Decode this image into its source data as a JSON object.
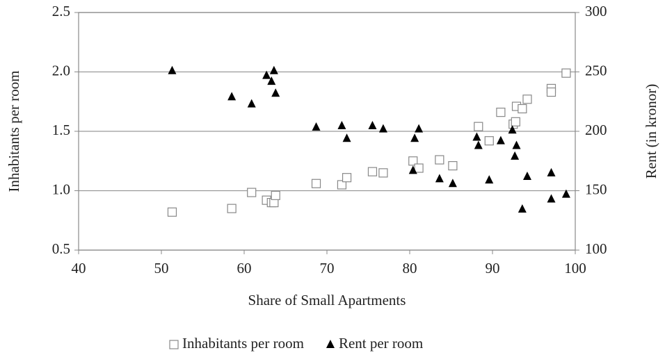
{
  "chart_data": {
    "type": "scatter",
    "x_label": "Share of Small Apartments",
    "y_label": "Inhabitants per room",
    "y2_label": "Rent  (in kronor)",
    "xlim": [
      40,
      100
    ],
    "xticks": [
      40,
      50,
      60,
      70,
      80,
      90,
      100
    ],
    "ylim": [
      0.5,
      2.5
    ],
    "yticks": [
      0.5,
      {
        "value": 1,
        "label": "1.0"
      },
      1.5,
      {
        "value": 2,
        "label": "2.0"
      },
      2.5
    ],
    "y2lim": [
      100,
      300
    ],
    "y2ticks": [
      100,
      150,
      200,
      250,
      300
    ],
    "grid": true,
    "legend": "bottom",
    "series": [
      {
        "name": "Inhabitants per room",
        "marker": "square",
        "color": "#888888",
        "x": [
          51.3,
          58.5,
          60.9,
          62.7,
          63.3,
          63.6,
          63.8,
          68.7,
          71.8,
          72.4,
          75.5,
          76.8,
          80.4,
          81.1,
          83.6,
          85.2,
          88.3,
          89.6,
          91.0,
          92.5,
          92.8,
          92.9,
          93.6,
          94.2,
          97.1,
          97.1,
          98.9
        ],
        "values": [
          0.82,
          0.85,
          0.985,
          0.92,
          0.9,
          0.9,
          0.96,
          1.06,
          1.05,
          1.11,
          1.16,
          1.15,
          1.25,
          1.19,
          1.26,
          1.21,
          1.54,
          1.42,
          1.66,
          1.56,
          1.58,
          1.71,
          1.69,
          1.77,
          1.86,
          1.83,
          1.99
        ]
      },
      {
        "name": "Rent per room",
        "marker": "triangle",
        "color": "#000000",
        "axis": "y2",
        "x": [
          51.3,
          58.5,
          60.9,
          62.7,
          63.3,
          63.6,
          63.8,
          68.7,
          71.8,
          72.4,
          75.5,
          76.8,
          80.4,
          80.6,
          81.1,
          83.6,
          85.2,
          88.1,
          88.3,
          89.6,
          91.0,
          92.4,
          92.7,
          92.9,
          93.6,
          94.2,
          97.1,
          97.1,
          98.9
        ],
        "values": [
          251,
          229,
          223,
          247,
          242,
          251,
          232,
          203.5,
          204.7,
          194,
          204.7,
          202,
          167,
          194,
          202,
          160,
          156,
          195,
          188,
          159,
          192,
          201,
          179,
          188,
          134.5,
          162,
          165,
          143,
          147
        ]
      }
    ]
  }
}
